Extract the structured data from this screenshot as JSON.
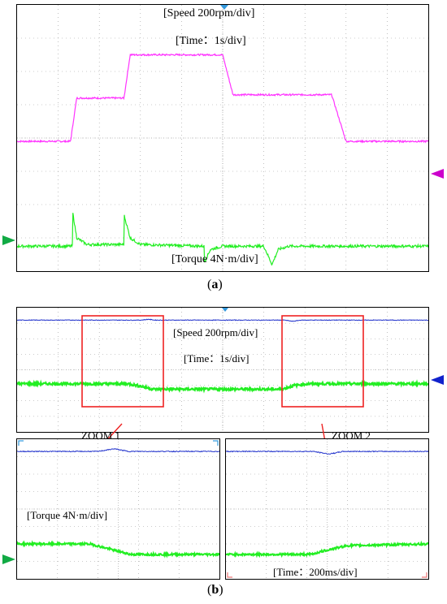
{
  "colors": {
    "speed_a": "#ff33ff",
    "torque": "#22ee22",
    "speed_b": "#2233cc",
    "zoom_box": "#ee2222",
    "grid": "#999999",
    "trig_marker": "#3399dd",
    "ch_speed_marker_a": "#cc00cc",
    "ch_torque_marker": "#11aa44",
    "ch_speed_marker_b": "#1122cc"
  },
  "panel_a": {
    "speed_label": "[Speed 200rpm/div]",
    "time_label": "[Time：1s/div]",
    "torque_label": "[Torque 4N·m/div]",
    "caption_open": "(",
    "caption_letter": "a",
    "caption_close": ")"
  },
  "panel_b": {
    "speed_label": "[Speed 200rpm/div]",
    "time_label": "[Time：1s/div]",
    "zoom1_label": "ZOOM 1",
    "zoom2_label": "ZOOM 2",
    "torque_label": "[Torque 4N·m/div]",
    "zoom_time_label": "[Time：200ms/div]",
    "caption_open": "(",
    "caption_letter": "b",
    "caption_close": ")"
  },
  "chart_data": [
    {
      "type": "line",
      "panel": "a",
      "grid": true,
      "xlim": [
        0,
        10
      ],
      "x_unit": "div (1 s/div)",
      "series": [
        {
          "name": "Speed",
          "scale": "200rpm/div",
          "x": [
            0,
            1.3,
            1.45,
            2.6,
            2.75,
            3.6,
            3.85,
            5.0,
            5.25,
            6.2,
            6.45,
            7.65,
            8.0,
            10
          ],
          "y": [
            -0.1,
            -0.1,
            1.2,
            1.2,
            2.5,
            2.5,
            2.5,
            2.5,
            1.3,
            1.3,
            1.3,
            1.3,
            -0.1,
            -0.1
          ]
        },
        {
          "name": "Torque",
          "scale": "4N·m/div",
          "x": [
            0,
            1.35,
            1.35,
            1.45,
            1.7,
            2.6,
            2.6,
            2.75,
            3.0,
            4.55,
            4.55,
            4.7,
            5.0,
            6.0,
            6.2,
            6.35,
            6.6,
            10
          ],
          "y": [
            -3.25,
            -3.25,
            -2.2,
            -3.0,
            -3.2,
            -3.2,
            -2.3,
            -3.0,
            -3.2,
            -3.25,
            -3.75,
            -3.35,
            -3.25,
            -3.25,
            -3.8,
            -3.35,
            -3.25,
            -3.25
          ]
        }
      ]
    },
    {
      "type": "line",
      "panel": "b",
      "grid": true,
      "xlim": [
        0,
        10
      ],
      "x_unit": "div (1 s/div)",
      "series": [
        {
          "name": "Speed",
          "scale": "200rpm/div",
          "x": [
            0,
            3.0,
            3.2,
            3.35,
            6.5,
            6.7,
            6.9,
            10
          ],
          "y": [
            3.2,
            3.2,
            3.25,
            3.2,
            3.2,
            3.12,
            3.2,
            3.2
          ]
        },
        {
          "name": "Torque",
          "scale": "4N·m/div",
          "x": [
            0,
            2.7,
            3.0,
            3.3,
            6.45,
            6.75,
            7.1,
            10
          ],
          "y": [
            -0.9,
            -0.9,
            -1.05,
            -1.25,
            -1.25,
            -1.0,
            -0.9,
            -0.9
          ]
        }
      ],
      "annotations": [
        "ZOOM 1",
        "ZOOM 2"
      ]
    },
    {
      "type": "line",
      "panel": "b-zoom1",
      "grid": true,
      "xlim": [
        0,
        10
      ],
      "x_unit": "div (200 ms/div)",
      "series": [
        {
          "name": "Speed",
          "x": [
            0,
            4.0,
            4.8,
            5.5,
            10
          ],
          "y": [
            3.3,
            3.3,
            3.45,
            3.3,
            3.3
          ]
        },
        {
          "name": "Torque",
          "x": [
            0,
            3.6,
            4.6,
            5.6,
            10
          ],
          "y": [
            -2.0,
            -2.0,
            -2.3,
            -2.6,
            -2.6
          ]
        }
      ]
    },
    {
      "type": "line",
      "panel": "b-zoom2",
      "grid": true,
      "xlim": [
        0,
        10
      ],
      "x_unit": "div (200 ms/div)",
      "series": [
        {
          "name": "Speed",
          "x": [
            0,
            4.3,
            5.1,
            5.8,
            10
          ],
          "y": [
            3.3,
            3.3,
            3.15,
            3.3,
            3.3
          ]
        },
        {
          "name": "Torque",
          "x": [
            0,
            4.2,
            5.0,
            6.0,
            10
          ],
          "y": [
            -2.6,
            -2.6,
            -2.35,
            -2.1,
            -2.0
          ]
        }
      ]
    }
  ]
}
